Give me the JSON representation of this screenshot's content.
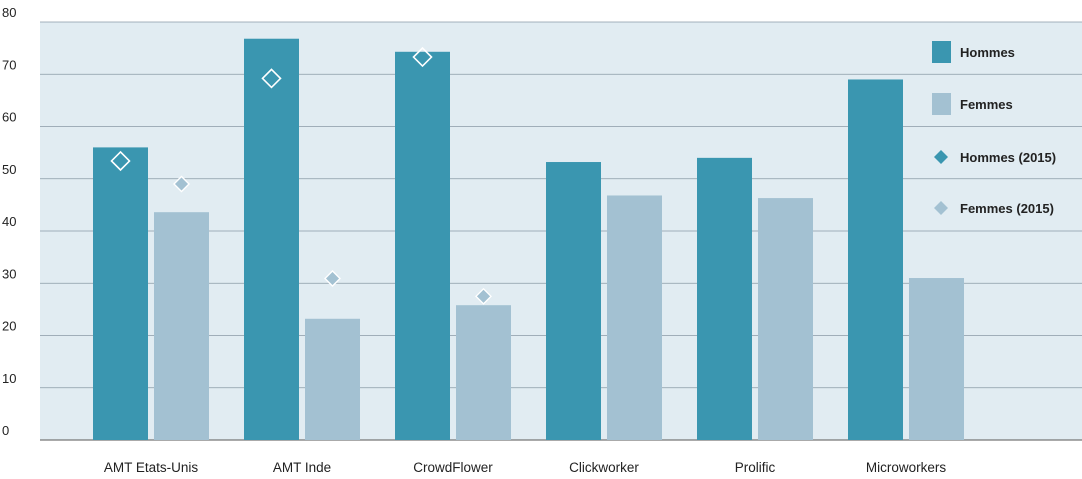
{
  "chart_data": {
    "type": "bar",
    "categories": [
      "AMT Etats-Unis",
      "AMT Inde",
      "CrowdFlower",
      "Clickworker",
      "Prolific",
      "Microworkers"
    ],
    "series": [
      {
        "name": "Hommes",
        "kind": "bar",
        "color": "#3a96b0",
        "values": [
          56,
          76.8,
          74.3,
          53.2,
          54,
          69
        ]
      },
      {
        "name": "Femmes",
        "kind": "bar",
        "color": "#a3c1d2",
        "values": [
          43.6,
          23.2,
          25.8,
          46.8,
          46.3,
          31
        ]
      },
      {
        "name": "Hommes (2015)",
        "kind": "marker",
        "color": "#3a96b0",
        "values": [
          53.4,
          69.2,
          73.3,
          null,
          null,
          null
        ]
      },
      {
        "name": "Femmes (2015)",
        "kind": "marker",
        "color": "#a3c1d2",
        "values": [
          49,
          30.9,
          27.5,
          null,
          null,
          null
        ]
      }
    ],
    "y_ticks": [
      "0",
      "10",
      "20",
      "30",
      "40",
      "50",
      "60",
      "70",
      "80"
    ],
    "ylim": [
      0,
      80
    ],
    "grid": true,
    "legend_position": "right",
    "title": "",
    "xlabel": "",
    "ylabel": "",
    "plot_background": "#e1ecf2"
  }
}
